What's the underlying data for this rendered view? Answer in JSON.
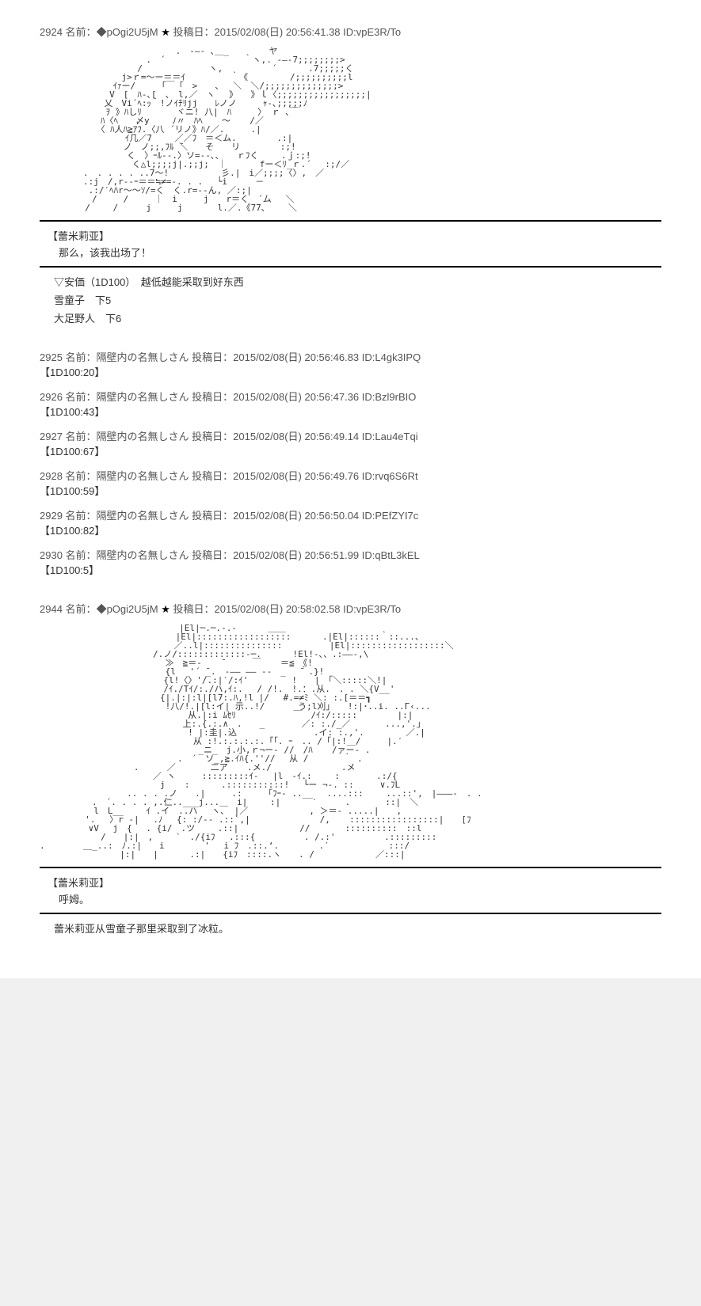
{
  "post1": {
    "number": "2924",
    "name_label": "名前：",
    "trip": "◆pOgi2U5jM",
    "star": "★",
    "date_label": "投稿日：",
    "date": "2015/02/08(日) 20:56:41.38",
    "id_label": "ID:",
    "id": "vpE3R/To",
    "aa": "　　　　　　　　　　　　　　 　.　-―- ､＿_　　　　 ヤ\n　　 　 　 　 　 　 　 .　´　　　　　　　　　｀ヽ,. -―-7;;;;;;;;>\n　 　 　 　 　 　 　 /　　　　　　 　ヽ,　　　　　 ´　　 　.7;;;;;く\n　　　　 　 　 　 j>ｒ=～ー＝＝ｲ　　 　 　｀《　 　 　 /;;;;;;;;;;l\n　　　 　 　 　 ｲｧー/　　　「￣「　>　　、　 ＼　＼/;;;;;;;;;;;;;;>\n　 　 　 　 　 V　[　ﾊ-､[　、　l,／　ヽ　 》　　》ｌ〈;;;;;;;;;;;;;;;;;|\n　　 　 　 　 乂　Vi´ﾍ:ｯ｀!ノｲﾁﾘjj　　ﾚノノ　　　ｬ-､;;;;;ﾉ\n　　　　　　　 ｦ 》ﾊしﾘ　　　　ヾニ! 八|　ﾊ　　　〉 ｒ ､￣\n　　　　　　　ﾊ〈ﾍ　　〆y　 　ﾉ〃　ﾊﾍ 　 ～ 　 /／\n　　　　　　　〈 ﾊ人ﾊ≧ｱﾌ.〈八 ´リノ》ﾊ/／.　　　.|\n　　　　　　 　 　 ｲ几／7　　 ／／ﾌ　＝＜ム.　　 　　.:|\n　　　　　　　　　 ノ　ノ;;,ﾌﾙ ̄＼　　そ　　リ　　　　 :;!\n　　　 　 　 　 　 く　〉ｰﾙ--.〉ソ=--､、　　ｒﾌく 　　.ｊ:;!\n　　 　 　 　 　 　 く△l;;;;j|.;;j;　｜ 　 　 fー＜ﾘ_ｒ.´　 :;/／\n　　　　　.　. . . . ..7～!　　　　　　彡.|　i／;;;;〈〉,　／\n　　　　　.:j　/,r--ｰ＝＝≒≠=-. . . 　└i 　 　－\n　　　　　 .:/′ﾍﾊr～～ｿ/=く　く.r=--ん, ／:;|\n　　　　　　/　　　/　　　｜　i　　　j　　r＝く　´ム 　＼\n　　　 　 /　　 /　 　 j　　　j　　　　l.／.《77､　 　＼",
    "char_name": "【蕾米莉亚】",
    "dialogue": "那么，该我出场了！",
    "info1": "▽安価（1D100）　越低越能采取到好东西",
    "info2": "雪童子　下5",
    "info3": "大足野人　下6"
  },
  "replies": [
    {
      "number": "2925",
      "name_label": "名前：",
      "name": "隔壁内の名無しさん",
      "date_label": "投稿日：",
      "date": "2015/02/08(日) 20:56:46.83",
      "id_label": "ID:",
      "id": "L4gk3IPQ",
      "body": "【1D100:20】"
    },
    {
      "number": "2926",
      "name_label": "名前：",
      "name": "隔壁内の名無しさん",
      "date_label": "投稿日：",
      "date": "2015/02/08(日) 20:56:47.36",
      "id_label": "ID:",
      "id": "Bzl9rBIO",
      "body": "【1D100:43】"
    },
    {
      "number": "2927",
      "name_label": "名前：",
      "name": "隔壁内の名無しさん",
      "date_label": "投稿日：",
      "date": "2015/02/08(日) 20:56:49.14",
      "id_label": "ID:",
      "id": "Lau4eTqi",
      "body": "【1D100:67】"
    },
    {
      "number": "2928",
      "name_label": "名前：",
      "name": "隔壁内の名無しさん",
      "date_label": "投稿日：",
      "date": "2015/02/08(日) 20:56:49.76",
      "id_label": "ID:",
      "id": "rvq6S6Rt",
      "body": "【1D100:59】"
    },
    {
      "number": "2929",
      "name_label": "名前：",
      "name": "隔壁内の名無しさん",
      "date_label": "投稿日：",
      "date": "2015/02/08(日) 20:56:50.04",
      "id_label": "ID:",
      "id": "PEfZYI7c",
      "body": "【1D100:82】"
    },
    {
      "number": "2930",
      "name_label": "名前：",
      "name": "隔壁内の名無しさん",
      "date_label": "投稿日：",
      "date": "2015/02/08(日) 20:56:51.99",
      "id_label": "ID:",
      "id": "qBtL3kEL",
      "body": "【1D100:5】"
    }
  ],
  "post2": {
    "number": "2944",
    "name_label": "名前：",
    "trip": "◆pOgi2U5jM",
    "star": "★",
    "date_label": "投稿日：",
    "date": "2015/02/08(日) 20:58:02.58",
    "id_label": "ID:",
    "id": "vpE3R/To",
    "aa": "　　　　　　　　　 　 　 　 　 |El|─.─.-.-　　　 ＿＿\n　　　　　　　　　　　　　　　 |El|::::::::::::::::::　　　 .|El|::::::｀::...、\n　　 　 　 　 　 　 　 　 　 ／..l|::::::::::::::: 　 　 　 |El|::::::::::::::::::＼\n　　　　　　　　　　　　　/.ノ/:::::::::::::-─.　　　 !El!-､、.:――-,\\\n　 　 　 　 　 　 　 　 　 ≫　≧＝-　  ̄　　　 ￣ 　 ＝≦　《!\n　 　 　 　 　 　 　 　 　 {l　 '´ ̄_.　-―― ―― --　_　 ̄｀.}!\n　　　　 　 　 　 　 　 　 {l!〈〉'/.:|′/:ｲ'　　　　　!　　|　｢＼:::::＼!|\n　　　　 　 　 　 　 　 　 /ｲ./Tｲ/:./ハ,ｲ:.　 / /!.　!.：.从.　. . ＼{V__'\n　　 　 　 　 　 　 　 　 {|.|:|:l|[l7:.ﾊ,!l |/　 #.=≠ﾐ ＼: :.[＝＝┓\n　 　 　 　 　 　 　 　 　 !八/!.|[l:イ| 示..!/ 　 　 う;l刈」　　!:|･..i. ..Г‹...\n　　 　 　 　 　 　 　 　 　 　 从.|:i ﾑｾﾘ　　　　　　 ￣　/ｲ:/:::::　　　　 |:|\n　　　 　 　 　 　 　 　 　 　 上:.{.:.∧　.　　_　 　 　／: :./_／　　　　...,'.｣\n　　 　 　 　 　 　 　 　 　 　 ! |:圭|.込　　　　　 　 　 .イ: :.,'.　 　 　 ／.|\n　 　 　 　 　 　 　 　 　 　 　 从 :!.:.:.:.:.「「. ｰ　.. /「|:!＿/　　　|.′\n　　　　　　　　 　 　 　 　 　 　 _ニ_　j.小,ｒ¬ー- //　/ﾊ 　 /ァー- .\n　　　　 　 　 　 　 　 　 　 .　´　ソ_,≧.ｲﾊ{.''// 　从 /　　　　｀ .\n　　　　　　　 　 　 .　 　 ／　　　　二ア 　 .メ./　　　　　　　　.メ\n　　　　　　 　 　 　 　 ／ ヽ　　　:::::::::ｲ-　 |l　-ｲ.:　　 :　　　  .:/{\n　　 　 　 　 　 　 　 　 j 　 :　　　 .:::::::::::! 　└ー ¬-. ::　　　∨.ﾌL\n　　 　 　 　 　 　.. . . .ノ　　.|　　　.:　　　「ﾌｰ- ..__　 ....:::　　 ...::',　|―――-　. .\n　　　　　　.　´. . . . ,.仁..___j...＿　i|　　 :|　　　 ′　　  .　　　　::|　＼\n　　　　 　 l　L__　　 ｲ .イ　..ハ　 ヽ、 |／　　　　　　　, ＞＝- .....|　　,\n　　　 　 '. 　〉r -| 　.ﾉ　 {: :/-- .::`,|　　　　　　　　/, 　 :::::::::::::::::|　　[ﾌ\n　　　　　 ∨V 　j　{ 　. {i/　.ツ　　 .::|　　　　　　　//　　　　::::::::::　::l\n 　 　 　 　 /　　|:|　,　　 `　./{iﾌ　 .:::{　　　　　 . /.:'　　　　　 .:::::::::\n. 　 　 　 _..:　ﾉ.:|　　i　　　　 ' 　i ﾌ　.::.‘.　　　　 .′　　 　 　　 :::/\n　　　　　￣　 　 |:|　　|　　　 .:|　　{iﾌ　::::.ヽ　　. / 　 　 　 　 ／:::|",
    "char_name": "【蕾米莉亚】",
    "dialogue": "呼姆。",
    "info": "蕾米莉亚从雪童子那里采取到了冰粒。"
  }
}
